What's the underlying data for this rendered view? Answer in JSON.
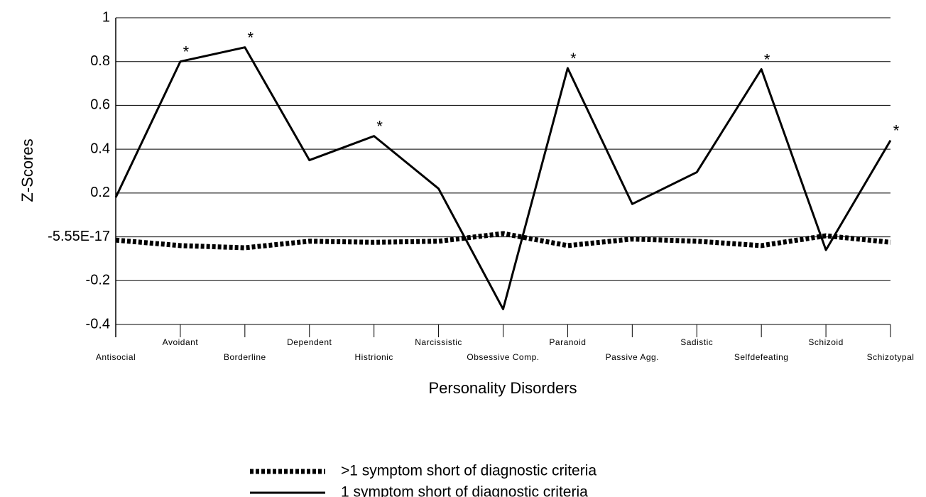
{
  "chart_data": {
    "type": "line",
    "x_label": "Personality Disorders",
    "y_label": "Z-Scores",
    "categories": [
      "Antisocial",
      "Avoidant",
      "Borderline",
      "Dependent",
      "Histrionic",
      "Narcissistic",
      "Obsessive Comp.",
      "Paranoid",
      "Passive Agg.",
      "Sadistic",
      "Selfdefeating",
      "Schizoid",
      "Schizotypal"
    ],
    "series": [
      {
        "name": ">1 symptom short of diagnostic criteria",
        "color": "#000000",
        "style": "dotted",
        "values": [
          -0.015,
          -0.04,
          -0.05,
          -0.02,
          -0.025,
          -0.02,
          0.015,
          -0.04,
          -0.01,
          -0.02,
          -0.04,
          0.005,
          -0.025
        ]
      },
      {
        "name": "1 symptom short of diagnostic criteria",
        "color": "#000000",
        "style": "solid",
        "values": [
          0.18,
          0.8,
          0.865,
          0.35,
          0.46,
          0.22,
          -0.33,
          0.77,
          0.15,
          0.295,
          0.765,
          -0.06,
          0.44
        ]
      }
    ],
    "annotations": [
      {
        "category": "Avoidant",
        "text": "*"
      },
      {
        "category": "Borderline",
        "text": "*"
      },
      {
        "category": "Histrionic",
        "text": "*"
      },
      {
        "category": "Paranoid",
        "text": "*"
      },
      {
        "category": "Selfdefeating",
        "text": "*"
      },
      {
        "category": "Schizotypal",
        "text": "*"
      }
    ],
    "ylim": [
      -0.4,
      1
    ],
    "yticks": [
      -0.4,
      -0.2,
      {
        "value": -5.55e-17,
        "label": "-5.55E-17"
      },
      0.2,
      0.4,
      0.6,
      0.8,
      1
    ],
    "grid": true,
    "legend": "bottom"
  }
}
